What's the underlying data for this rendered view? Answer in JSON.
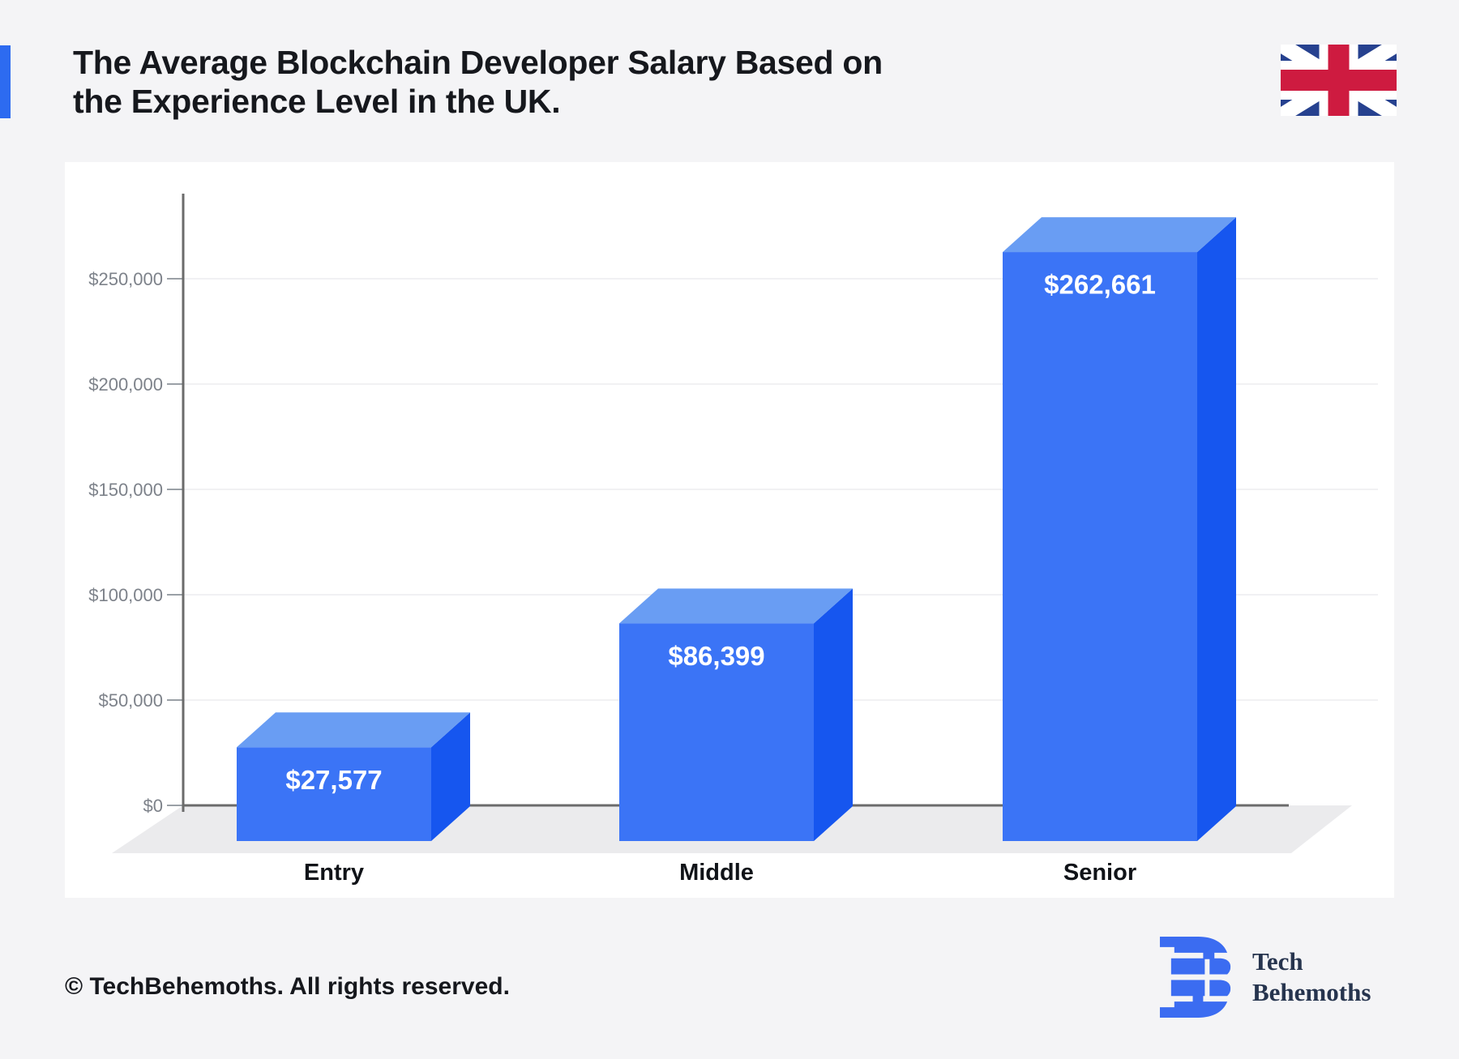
{
  "header": {
    "title_line1": "The Average Blockchain Developer Salary Based on",
    "title_line2": "the Experience Level in the UK.",
    "accent_color": "#2D6BF0",
    "flag_icon": "uk-flag-icon",
    "flag_colors": {
      "navy": "#26418F",
      "red": "#CE1B40",
      "white": "#FFFFFF"
    }
  },
  "chart_data": {
    "type": "bar",
    "style": "3d-column",
    "title": "",
    "xlabel": "",
    "ylabel": "",
    "categories": [
      "Entry",
      "Middle",
      "Senior"
    ],
    "values": [
      27577,
      86399,
      262661
    ],
    "value_labels": [
      "$27,577",
      "$86,399",
      "$262,661"
    ],
    "currency": "USD",
    "ylim": [
      0,
      280000
    ],
    "yticks": [
      0,
      50000,
      100000,
      150000,
      200000,
      250000
    ],
    "ytick_labels": [
      "$0",
      "$50,000",
      "$100,000",
      "$150,000",
      "$200,000",
      "$250,000"
    ],
    "grid": true,
    "legend": false,
    "colors": {
      "bar_front": "#3B74F6",
      "bar_top": "#699DF3",
      "bar_side": "#1656EF",
      "axis": "#6B6B6B",
      "tick_mark": "#9AA0A6",
      "tick_label": "#7D828A",
      "gridline": "#F1F1F3",
      "floor": "#EBEBED",
      "value_label": "#FFFFFF",
      "category_label": "#101318"
    }
  },
  "footer": {
    "copyright": "© TechBehemoths. All rights reserved.",
    "logo_line1": "Tech",
    "logo_line2": "Behemoths",
    "logo_color": "#3B6CF1",
    "logo_text_color": "#26344E"
  }
}
